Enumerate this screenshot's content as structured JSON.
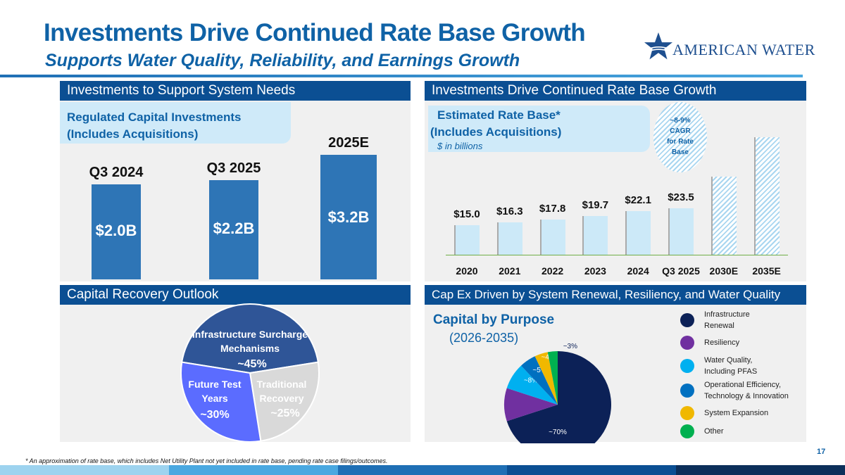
{
  "header": {
    "title": "Investments Drive Continued Rate Base Growth",
    "subtitle": "Supports Water Quality, Reliability, and Earnings Growth",
    "logo_text": "American Water"
  },
  "colors": {
    "brand": "#0f62a6",
    "header_bar": "#0b4f93",
    "bar": "#2e75b6",
    "rate_bar": "#cce9f8"
  },
  "panels": {
    "top_left": "Investments to Support System Needs",
    "top_right": "Investments Drive Continued Rate Base Growth",
    "bottom_left": "Capital Recovery Outlook",
    "bottom_right": "Cap Ex Driven by System Renewal, Resiliency, and Water Quality"
  },
  "chart_data": [
    {
      "type": "bar",
      "title": "Regulated Capital Investments",
      "subtitle": "(Includes Acquisitions)",
      "categories": [
        "Q3 2024",
        "Q3 2025",
        "2025E"
      ],
      "values": [
        2.0,
        2.2,
        3.2
      ],
      "data_labels": [
        "$2.0B",
        "$2.2B",
        "$3.2B"
      ]
    },
    {
      "type": "bar",
      "title": "Estimated Rate Base*",
      "subtitle": "(Includes Acquisitions)",
      "unit_note": "$ in billions",
      "categories": [
        "2020",
        "2021",
        "2022",
        "2023",
        "2024",
        "Q3 2025",
        "2030E",
        "2035E"
      ],
      "values": [
        15.0,
        16.3,
        17.8,
        19.7,
        22.1,
        23.5,
        39.5,
        59.5
      ],
      "data_labels": [
        "$15.0",
        "$16.3",
        "$17.8",
        "$19.7",
        "$22.1",
        "$23.5",
        "",
        ""
      ],
      "projected": [
        false,
        false,
        false,
        false,
        false,
        false,
        true,
        true
      ],
      "annotation": [
        "~8-9%",
        "CAGR",
        "for Rate",
        "Base"
      ]
    },
    {
      "type": "pie",
      "slices": [
        {
          "label": [
            "Infrastructure Surcharge",
            "Mechanisms"
          ],
          "value_label": "~45%",
          "value": 45,
          "color": "#2f5597"
        },
        {
          "label": [
            "Traditional",
            "Recovery"
          ],
          "value_label": "~25%",
          "value": 25,
          "color": "#d9d9d9"
        },
        {
          "label": [
            "Future Test",
            "Years"
          ],
          "value_label": "~30%",
          "value": 30,
          "color": "#5b6cff"
        }
      ]
    },
    {
      "type": "pie",
      "title": "Capital by Purpose",
      "subtitle": "(2026-2035)",
      "slices": [
        {
          "label": "Infrastructure Renewal",
          "legend": [
            "Infrastructure",
            "Renewal"
          ],
          "value_label": "~70%",
          "value": 70,
          "color": "#0c2157"
        },
        {
          "label": "Resiliency",
          "legend": [
            "Resiliency"
          ],
          "value_label": "~10%",
          "value": 10,
          "color": "#7030a0"
        },
        {
          "label": "Water Quality, Including PFAS",
          "legend": [
            "Water Quality,",
            "Including PFAS"
          ],
          "value_label": "~8%",
          "value": 8,
          "color": "#00b0f0"
        },
        {
          "label": "Operational Efficiency, Technology & Innovation",
          "legend": [
            "Operational Efficiency,",
            "Technology & Innovation"
          ],
          "value_label": "~5%",
          "value": 5,
          "color": "#0070c0"
        },
        {
          "label": "System Expansion",
          "legend": [
            "System Expansion"
          ],
          "value_label": "~4%",
          "value": 4,
          "color": "#f0b800"
        },
        {
          "label": "Other",
          "legend": [
            "Other"
          ],
          "value_label": "~3%",
          "value": 3,
          "color": "#00b050"
        }
      ]
    }
  ],
  "footer": {
    "page_number": "17",
    "footnote": "* An approximation of rate base, which includes Net Utility Plant not yet included in rate base, pending rate case filings/outcomes."
  }
}
